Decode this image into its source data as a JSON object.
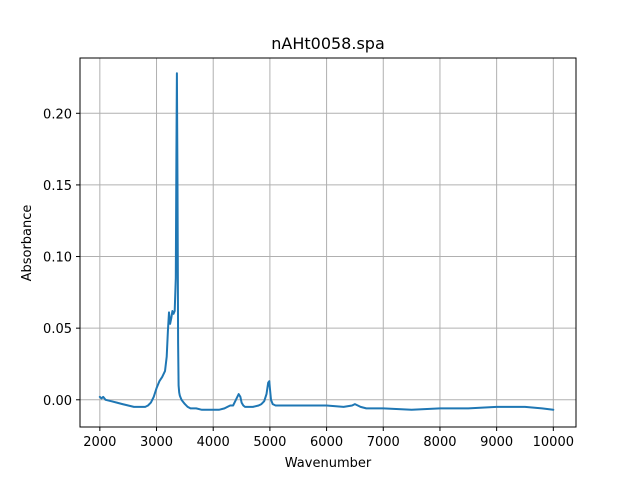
{
  "chart_data": {
    "type": "line",
    "title": "nAHt0058.spa",
    "xlabel": "Wavenumber",
    "ylabel": "Absorbance",
    "xlim": [
      1650,
      10400
    ],
    "ylim": [
      -0.019,
      0.2386
    ],
    "grid": true,
    "x_ticks": [
      2000,
      3000,
      4000,
      5000,
      6000,
      7000,
      8000,
      9000,
      10000
    ],
    "x_tick_labels": [
      "2000",
      "3000",
      "4000",
      "5000",
      "6000",
      "7000",
      "8000",
      "9000",
      "10000"
    ],
    "y_ticks": [
      0.0,
      0.05,
      0.1,
      0.15,
      0.2
    ],
    "y_tick_labels": [
      "0.00",
      "0.05",
      "0.10",
      "0.15",
      "0.20"
    ],
    "series": [
      {
        "color": "#1f77b4",
        "x": [
          2000,
          2030,
          2060,
          2100,
          2200,
          2300,
          2400,
          2500,
          2600,
          2700,
          2800,
          2850,
          2900,
          2950,
          3000,
          3050,
          3100,
          3150,
          3180,
          3200,
          3220,
          3240,
          3260,
          3280,
          3300,
          3320,
          3340,
          3350,
          3360,
          3370,
          3380,
          3390,
          3400,
          3410,
          3420,
          3440,
          3460,
          3500,
          3550,
          3600,
          3700,
          3800,
          3900,
          4000,
          4100,
          4200,
          4250,
          4300,
          4350,
          4400,
          4450,
          4480,
          4500,
          4530,
          4560,
          4600,
          4700,
          4800,
          4850,
          4900,
          4940,
          4970,
          4990,
          5000,
          5020,
          5050,
          5100,
          5200,
          5500,
          6000,
          6300,
          6450,
          6500,
          6550,
          6600,
          6700,
          7000,
          7500,
          8000,
          8500,
          9000,
          9500,
          9800,
          10000
        ],
        "y": [
          0.002,
          0.001,
          0.002,
          0.0,
          -0.001,
          -0.002,
          -0.003,
          -0.004,
          -0.005,
          -0.005,
          -0.005,
          -0.004,
          -0.002,
          0.002,
          0.008,
          0.013,
          0.016,
          0.02,
          0.03,
          0.048,
          0.061,
          0.053,
          0.057,
          0.062,
          0.06,
          0.062,
          0.085,
          0.17,
          0.228,
          0.15,
          0.04,
          0.01,
          0.005,
          0.003,
          0.002,
          0.0,
          -0.001,
          -0.003,
          -0.005,
          -0.006,
          -0.006,
          -0.007,
          -0.007,
          -0.007,
          -0.007,
          -0.006,
          -0.005,
          -0.004,
          -0.004,
          0.0,
          0.004,
          0.002,
          -0.002,
          -0.004,
          -0.005,
          -0.005,
          -0.005,
          -0.004,
          -0.003,
          -0.001,
          0.004,
          0.012,
          0.013,
          0.008,
          0.0,
          -0.003,
          -0.004,
          -0.004,
          -0.004,
          -0.004,
          -0.005,
          -0.004,
          -0.003,
          -0.004,
          -0.005,
          -0.006,
          -0.006,
          -0.007,
          -0.006,
          -0.006,
          -0.005,
          -0.005,
          -0.006,
          -0.007
        ]
      }
    ]
  }
}
